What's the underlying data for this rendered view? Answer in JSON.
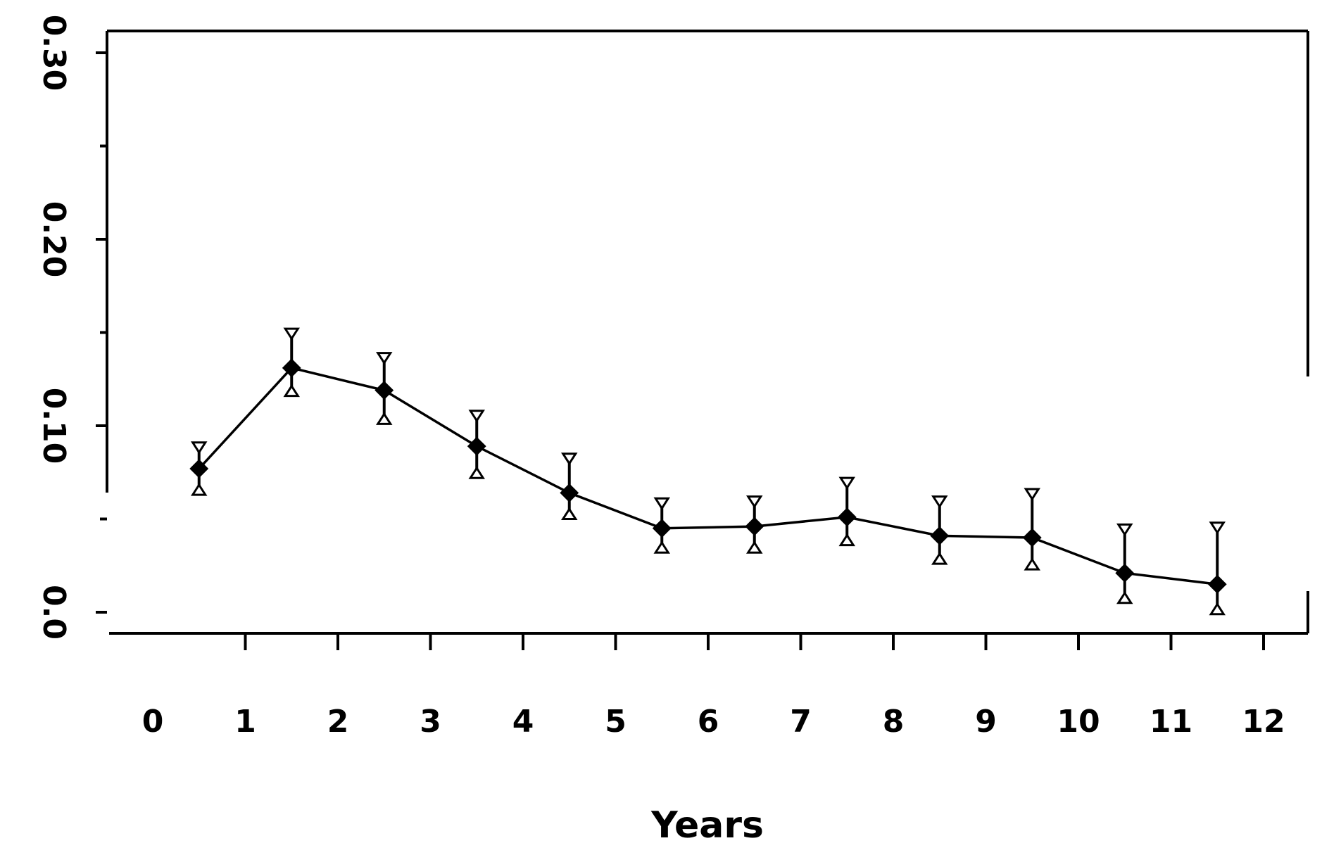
{
  "chart_data": {
    "type": "line",
    "title": "",
    "xlabel": "Years",
    "ylabel": "",
    "x_ticks": [
      "0",
      "1",
      "2",
      "3",
      "4",
      "5",
      "6",
      "7",
      "8",
      "9",
      "10",
      "11",
      "12"
    ],
    "y_ticks": [
      "0.0",
      "0.10",
      "0.20",
      "0.30"
    ],
    "xlim": [
      0,
      12
    ],
    "ylim": [
      -0.01,
      0.31
    ],
    "grid": false,
    "legend": "none",
    "series": [
      {
        "x": [
          0.5,
          1.5,
          2.5,
          3.5,
          4.5,
          5.5,
          6.5,
          7.5,
          8.5,
          9.5,
          10.5,
          11.5
        ],
        "y": [
          0.077,
          0.131,
          0.119,
          0.089,
          0.064,
          0.045,
          0.046,
          0.051,
          0.041,
          0.04,
          0.021,
          0.015
        ],
        "lower": [
          0.066,
          0.119,
          0.104,
          0.075,
          0.053,
          0.035,
          0.035,
          0.039,
          0.029,
          0.026,
          0.008,
          0.002
        ],
        "upper": [
          0.088,
          0.149,
          0.136,
          0.105,
          0.082,
          0.058,
          0.059,
          0.069,
          0.059,
          0.063,
          0.044,
          0.045
        ]
      }
    ],
    "colors": {
      "line": "#000000",
      "background": "#ffffff"
    }
  }
}
